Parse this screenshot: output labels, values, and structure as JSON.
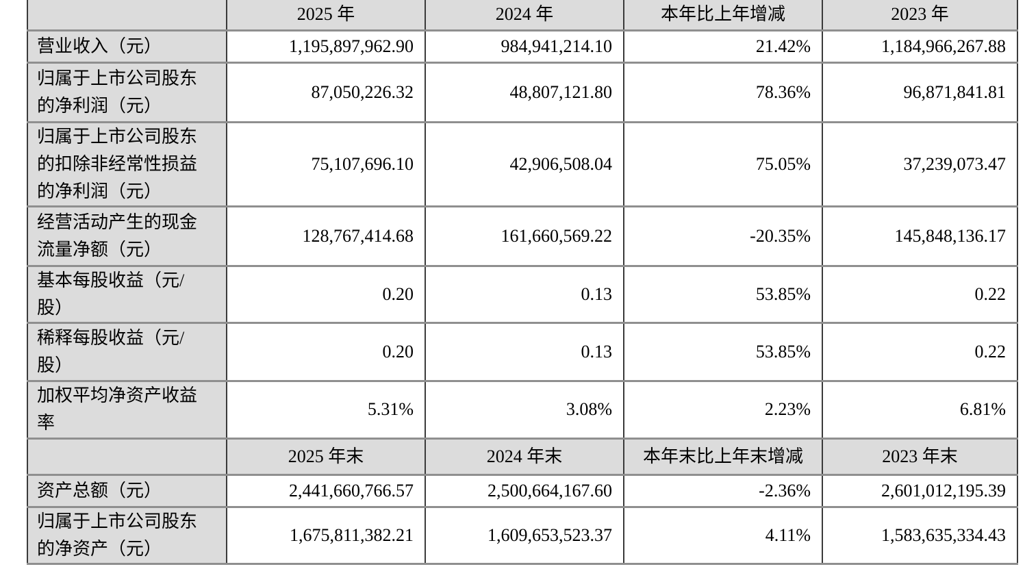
{
  "table": {
    "sections": [
      {
        "header": {
          "col0": "",
          "cols": [
            "2025 年",
            "2024 年",
            "本年比上年增减",
            "2023 年"
          ]
        },
        "rows": [
          {
            "label": "营业收入（元）",
            "values": [
              "1,195,897,962.90",
              "984,941,214.10",
              "21.42%",
              "1,184,966,267.88"
            ]
          },
          {
            "label": "归属于上市公司股东\n的净利润（元）",
            "values": [
              "87,050,226.32",
              "48,807,121.80",
              "78.36%",
              "96,871,841.81"
            ]
          },
          {
            "label": "归属于上市公司股东\n的扣除非经常性损益\n的净利润（元）",
            "values": [
              "75,107,696.10",
              "42,906,508.04",
              "75.05%",
              "37,239,073.47"
            ]
          },
          {
            "label": "经营活动产生的现金\n流量净额（元）",
            "values": [
              "128,767,414.68",
              "161,660,569.22",
              "-20.35%",
              "145,848,136.17"
            ]
          },
          {
            "label": "基本每股收益（元/\n股）",
            "values": [
              "0.20",
              "0.13",
              "53.85%",
              "0.22"
            ]
          },
          {
            "label": "稀释每股收益（元/\n股）",
            "values": [
              "0.20",
              "0.13",
              "53.85%",
              "0.22"
            ]
          },
          {
            "label": "加权平均净资产收益\n率",
            "values": [
              "5.31%",
              "3.08%",
              "2.23%",
              "6.81%"
            ]
          }
        ]
      },
      {
        "header": {
          "col0": "",
          "cols": [
            "2025 年末",
            "2024 年末",
            "本年末比上年末增减",
            "2023 年末"
          ]
        },
        "rows": [
          {
            "label": "资产总额（元）",
            "values": [
              "2,441,660,766.57",
              "2,500,664,167.60",
              "-2.36%",
              "2,601,012,195.39"
            ]
          },
          {
            "label": "归属于上市公司股东\n的净资产（元）",
            "values": [
              "1,675,811,382.21",
              "1,609,653,523.37",
              "4.11%",
              "1,583,635,334.43"
            ]
          }
        ]
      }
    ],
    "colors": {
      "cell_fill_gray": "#dcdcdc",
      "border_vertical": "#3a3a3a",
      "border_horizontal": "#8f8f8f",
      "text": "#000000",
      "background": "#ffffff"
    }
  }
}
